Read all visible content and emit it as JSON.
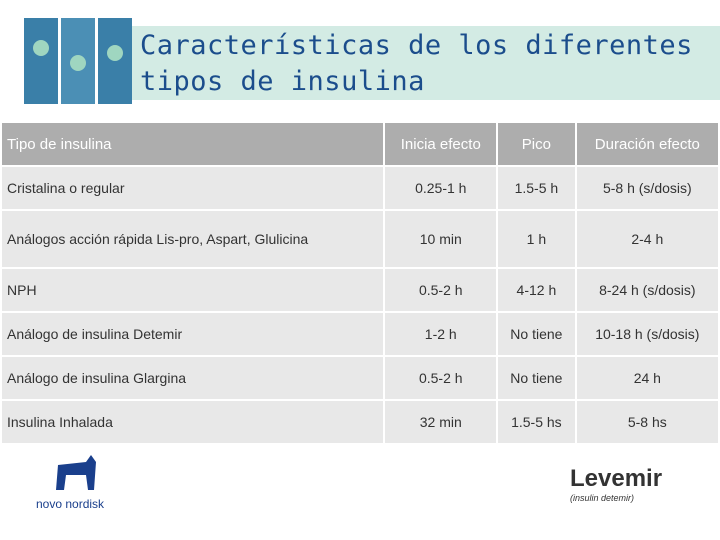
{
  "header": {
    "title": "Características de los diferentes tipos de insulina"
  },
  "table": {
    "columns": [
      "Tipo de insulina",
      "Inicia efecto",
      "Pico",
      "Duración efecto"
    ],
    "rows": [
      [
        "Cristalina o regular",
        "0.25-1 h",
        "1.5-5 h",
        "5-8 h (s/dosis)"
      ],
      [
        "Análogos acción rápida Lis-pro, Aspart, Glulicina",
        "10 min",
        "1 h",
        "2-4 h"
      ],
      [
        "NPH",
        "0.5-2 h",
        "4-12 h",
        "8-24 h (s/dosis)"
      ],
      [
        "Análogo de insulina Detemir",
        "1-2 h",
        "No tiene",
        "10-18 h (s/dosis)"
      ],
      [
        "Análogo de insulina Glargina",
        "0.5-2 h",
        "No tiene",
        "24 h"
      ],
      [
        "Insulina Inhalada",
        "32 min",
        "1.5-5 hs",
        "5-8 hs"
      ]
    ]
  },
  "logos": {
    "left": "novo nordisk",
    "right_name": "Levemir",
    "right_sub": "(insulin detemir)"
  }
}
